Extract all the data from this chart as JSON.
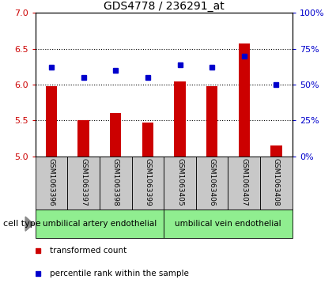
{
  "title": "GDS4778 / 236291_at",
  "samples": [
    "GSM1063396",
    "GSM1063397",
    "GSM1063398",
    "GSM1063399",
    "GSM1063405",
    "GSM1063406",
    "GSM1063407",
    "GSM1063408"
  ],
  "red_values": [
    5.98,
    5.5,
    5.6,
    5.47,
    6.04,
    5.98,
    6.57,
    5.15
  ],
  "blue_values": [
    62,
    55,
    60,
    55,
    64,
    62,
    70,
    50
  ],
  "ylim_left": [
    5.0,
    7.0
  ],
  "ylim_right": [
    0,
    100
  ],
  "yticks_left": [
    5.0,
    5.5,
    6.0,
    6.5,
    7.0
  ],
  "yticks_right": [
    0,
    25,
    50,
    75,
    100
  ],
  "ytick_labels_right": [
    "0%",
    "25%",
    "50%",
    "75%",
    "100%"
  ],
  "bar_color": "#cc0000",
  "dot_color": "#0000cc",
  "cell_type_label": "cell type",
  "legend_items": [
    {
      "label": "transformed count",
      "color": "#cc0000"
    },
    {
      "label": "percentile rank within the sample",
      "color": "#0000cc"
    }
  ],
  "bar_width": 0.35,
  "tick_label_area_color": "#c8c8c8",
  "cell_type_area_color": "#90EE90",
  "group_labels": [
    "umbilical artery endothelial",
    "umbilical vein endothelial"
  ],
  "group_sizes": [
    4,
    4
  ]
}
